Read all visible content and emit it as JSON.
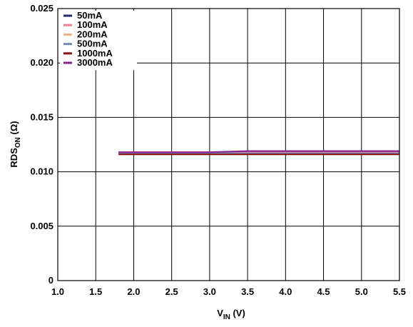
{
  "chart_data": {
    "type": "line",
    "xlabel": "V",
    "xlabel_sub": "IN",
    "xlabel_unit": " (V)",
    "ylabel": "RDS",
    "ylabel_sub": "ON",
    "ylabel_unit": " (Ω)",
    "xlim": [
      1.0,
      5.5
    ],
    "ylim": [
      0,
      0.025
    ],
    "x_ticks": [
      "1.0",
      "1.5",
      "2.0",
      "2.5",
      "3.0",
      "3.5",
      "4.0",
      "4.5",
      "5.0",
      "5.5"
    ],
    "x_tick_values": [
      1.0,
      1.5,
      2.0,
      2.5,
      3.0,
      3.5,
      4.0,
      4.5,
      5.0,
      5.5
    ],
    "y_ticks": [
      "0",
      "0.005",
      "0.010",
      "0.015",
      "0.020",
      "0.025"
    ],
    "y_tick_values": [
      0,
      0.005,
      0.01,
      0.015,
      0.02,
      0.025
    ],
    "grid": true,
    "legend_position": "top-left",
    "series": [
      {
        "name": "50mA",
        "color": "#1f2a6b",
        "x": [
          1.8,
          2.5,
          3.0,
          3.5,
          4.0,
          4.5,
          5.0,
          5.5
        ],
        "y": [
          0.01175,
          0.01175,
          0.01175,
          0.01175,
          0.01175,
          0.01175,
          0.01175,
          0.01175
        ]
      },
      {
        "name": "100mA",
        "color": "#f08090",
        "x": [
          1.8,
          2.5,
          3.0,
          3.5,
          4.0,
          4.5,
          5.0,
          5.5
        ],
        "y": [
          0.0118,
          0.0118,
          0.0118,
          0.0118,
          0.0118,
          0.0118,
          0.0118,
          0.0118
        ]
      },
      {
        "name": "200mA",
        "color": "#f5b080",
        "x": [
          1.8,
          2.5,
          3.0,
          3.5,
          4.0,
          4.5,
          5.0,
          5.5
        ],
        "y": [
          0.01165,
          0.01165,
          0.01165,
          0.01165,
          0.01165,
          0.01165,
          0.01165,
          0.01165
        ]
      },
      {
        "name": "500mA",
        "color": "#7090b8",
        "x": [
          1.8,
          2.5,
          3.0,
          3.5,
          4.0,
          4.5,
          5.0,
          5.5
        ],
        "y": [
          0.0117,
          0.0117,
          0.0117,
          0.0117,
          0.0117,
          0.0117,
          0.0117,
          0.0117
        ]
      },
      {
        "name": "1000mA",
        "color": "#8b1010",
        "x": [
          1.8,
          2.5,
          3.0,
          3.5,
          4.0,
          4.5,
          5.0,
          5.5
        ],
        "y": [
          0.0116,
          0.0116,
          0.0116,
          0.0116,
          0.0116,
          0.0116,
          0.0116,
          0.0116
        ]
      },
      {
        "name": "3000mA",
        "color": "#8a2090",
        "x": [
          1.8,
          2.5,
          3.0,
          3.5,
          4.0,
          4.5,
          5.0,
          5.5
        ],
        "y": [
          0.0118,
          0.0118,
          0.0118,
          0.0119,
          0.0119,
          0.0119,
          0.0119,
          0.0119
        ]
      }
    ]
  }
}
